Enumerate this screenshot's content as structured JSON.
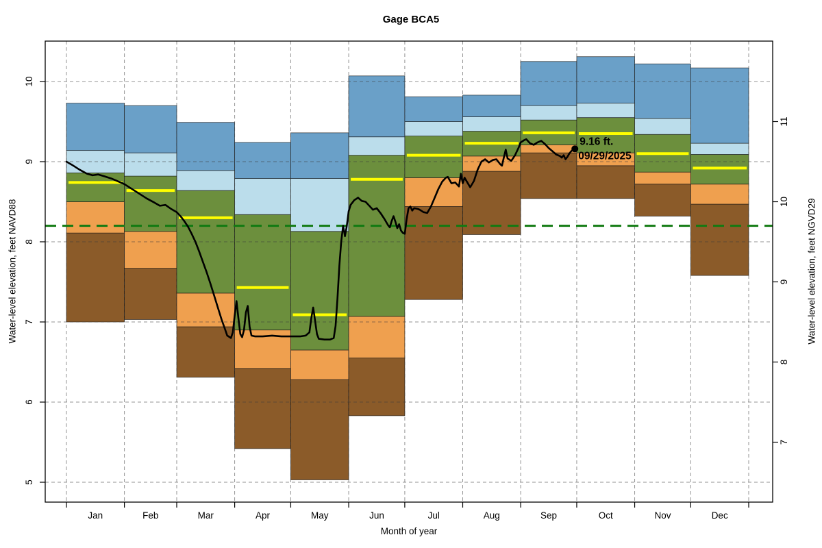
{
  "title": "Gage BCA5",
  "axes": {
    "x_label": "Month of year",
    "y_left_label": "Water-level elevation, feet NAVD88",
    "y_right_label": "Water-level elevation, feet NGVD29",
    "y_left_ticks": [
      5,
      6,
      7,
      8,
      9,
      10
    ],
    "y_right_ticks": [
      7,
      8,
      9,
      10,
      11
    ],
    "ngvd29_minus_navd88_offset": 1.5,
    "y_range_navd88": [
      4.75,
      10.5
    ]
  },
  "chart_data": {
    "type": "area",
    "title": "Gage BCA5",
    "xlabel": "Month of year",
    "ylabel_left": "Water-level elevation, feet NAVD88",
    "ylabel_right": "Water-level elevation, feet NGVD29",
    "months": [
      "Jan",
      "Feb",
      "Mar",
      "Apr",
      "May",
      "Jun",
      "Jul",
      "Aug",
      "Sep",
      "Oct",
      "Nov",
      "Dec"
    ],
    "month_days": [
      31,
      28,
      31,
      30,
      31,
      30,
      31,
      31,
      30,
      31,
      30,
      31
    ],
    "band_order": [
      "min_to_p10",
      "p10_to_p25",
      "p25_to_p75",
      "p75_to_p90",
      "p90_to_max"
    ],
    "band_colors": {
      "min_to_p10": "#8B5B29",
      "p10_to_p25": "#EFA04F",
      "p25_to_p75": "#6C8F3D",
      "p75_to_p90": "#BBDDEB",
      "p90_to_max": "#6AA0C8"
    },
    "median_color": "#FFFF00",
    "grid_color": "#3C3C3C",
    "bands": [
      {
        "month": "Jan",
        "min": 7.0,
        "p10": 8.11,
        "p25": 8.5,
        "p50": 8.74,
        "p75": 8.86,
        "p90": 9.14,
        "max": 9.73
      },
      {
        "month": "Feb",
        "min": 7.03,
        "p10": 7.67,
        "p25": 8.13,
        "p50": 8.64,
        "p75": 8.82,
        "p90": 9.11,
        "max": 9.7
      },
      {
        "month": "Mar",
        "min": 6.31,
        "p10": 6.94,
        "p25": 7.36,
        "p50": 8.3,
        "p75": 8.64,
        "p90": 8.89,
        "max": 9.49
      },
      {
        "month": "Apr",
        "min": 5.42,
        "p10": 6.42,
        "p25": 6.9,
        "p50": 7.43,
        "p75": 8.34,
        "p90": 8.79,
        "max": 9.24
      },
      {
        "month": "May",
        "min": 5.03,
        "p10": 6.28,
        "p25": 6.65,
        "p50": 7.09,
        "p75": 8.13,
        "p90": 8.79,
        "max": 9.36
      },
      {
        "month": "Jun",
        "min": 5.83,
        "p10": 6.55,
        "p25": 7.07,
        "p50": 8.78,
        "p75": 9.08,
        "p90": 9.31,
        "max": 10.07
      },
      {
        "month": "Jul",
        "min": 7.28,
        "p10": 8.44,
        "p25": 8.8,
        "p50": 9.08,
        "p75": 9.32,
        "p90": 9.5,
        "max": 9.81
      },
      {
        "month": "Aug",
        "min": 8.09,
        "p10": 8.88,
        "p25": 9.07,
        "p50": 9.23,
        "p75": 9.38,
        "p90": 9.56,
        "max": 9.83
      },
      {
        "month": "Sep",
        "min": 8.54,
        "p10": 9.11,
        "p25": 9.21,
        "p50": 9.36,
        "p75": 9.52,
        "p90": 9.7,
        "max": 10.25
      },
      {
        "month": "Oct",
        "min": 8.54,
        "p10": 8.95,
        "p25": 9.11,
        "p50": 9.35,
        "p75": 9.55,
        "p90": 9.73,
        "max": 10.31
      },
      {
        "month": "Nov",
        "min": 8.32,
        "p10": 8.72,
        "p25": 8.87,
        "p50": 9.1,
        "p75": 9.34,
        "p90": 9.54,
        "max": 10.22
      },
      {
        "month": "Dec",
        "min": 7.58,
        "p10": 8.47,
        "p25": 8.72,
        "p50": 8.92,
        "p75": 9.09,
        "p90": 9.23,
        "max": 10.17
      }
    ],
    "reference_line": {
      "value_navd88": 8.2,
      "color": "#117A11",
      "style": "dashed"
    },
    "observed_line": {
      "color": "#000000",
      "points": [
        [
          0,
          9.0
        ],
        [
          3,
          8.96
        ],
        [
          7,
          8.9
        ],
        [
          11,
          8.85
        ],
        [
          14,
          8.83
        ],
        [
          17,
          8.84
        ],
        [
          20,
          8.82
        ],
        [
          24,
          8.79
        ],
        [
          27,
          8.76
        ],
        [
          31,
          8.72
        ],
        [
          35,
          8.66
        ],
        [
          39,
          8.6
        ],
        [
          43,
          8.54
        ],
        [
          47,
          8.49
        ],
        [
          50,
          8.45
        ],
        [
          53,
          8.46
        ],
        [
          56,
          8.41
        ],
        [
          59,
          8.37
        ],
        [
          61,
          8.32
        ],
        [
          63,
          8.26
        ],
        [
          65,
          8.19
        ],
        [
          67,
          8.1
        ],
        [
          69,
          8.0
        ],
        [
          71,
          7.88
        ],
        [
          73,
          7.75
        ],
        [
          75,
          7.62
        ],
        [
          77,
          7.48
        ],
        [
          79,
          7.33
        ],
        [
          81,
          7.18
        ],
        [
          83,
          7.03
        ],
        [
          85,
          6.9
        ],
        [
          86,
          6.83
        ],
        [
          88,
          6.8
        ],
        [
          89,
          6.87
        ],
        [
          90,
          7.08
        ],
        [
          91,
          7.26
        ],
        [
          92,
          7.05
        ],
        [
          93,
          6.85
        ],
        [
          94,
          6.81
        ],
        [
          95,
          6.9
        ],
        [
          96,
          7.12
        ],
        [
          97,
          7.2
        ],
        [
          98,
          6.94
        ],
        [
          99,
          6.83
        ],
        [
          101,
          6.82
        ],
        [
          105,
          6.82
        ],
        [
          110,
          6.83
        ],
        [
          115,
          6.82
        ],
        [
          120,
          6.82
        ],
        [
          125,
          6.82
        ],
        [
          128,
          6.83
        ],
        [
          130,
          6.87
        ],
        [
          131,
          7.05
        ],
        [
          132,
          7.18
        ],
        [
          133,
          7.02
        ],
        [
          134,
          6.85
        ],
        [
          135,
          6.79
        ],
        [
          138,
          6.78
        ],
        [
          141,
          6.78
        ],
        [
          143,
          6.8
        ],
        [
          144,
          6.95
        ],
        [
          145,
          7.3
        ],
        [
          146,
          7.7
        ],
        [
          147,
          8.0
        ],
        [
          148,
          8.2
        ],
        [
          149,
          8.07
        ],
        [
          150,
          8.2
        ],
        [
          151,
          8.38
        ],
        [
          152,
          8.46
        ],
        [
          154,
          8.52
        ],
        [
          156,
          8.55
        ],
        [
          158,
          8.51
        ],
        [
          160,
          8.5
        ],
        [
          162,
          8.45
        ],
        [
          164,
          8.4
        ],
        [
          166,
          8.42
        ],
        [
          168,
          8.36
        ],
        [
          170,
          8.29
        ],
        [
          172,
          8.21
        ],
        [
          173,
          8.18
        ],
        [
          174,
          8.26
        ],
        [
          175,
          8.32
        ],
        [
          176,
          8.25
        ],
        [
          177,
          8.17
        ],
        [
          178,
          8.22
        ],
        [
          179,
          8.14
        ],
        [
          180,
          8.11
        ],
        [
          181,
          8.1
        ],
        [
          182,
          8.28
        ],
        [
          183,
          8.42
        ],
        [
          184,
          8.44
        ],
        [
          185,
          8.39
        ],
        [
          186,
          8.42
        ],
        [
          188,
          8.41
        ],
        [
          189,
          8.4
        ],
        [
          191,
          8.37
        ],
        [
          193,
          8.36
        ],
        [
          195,
          8.44
        ],
        [
          197,
          8.55
        ],
        [
          199,
          8.66
        ],
        [
          201,
          8.75
        ],
        [
          203,
          8.8
        ],
        [
          204,
          8.81
        ],
        [
          206,
          8.73
        ],
        [
          208,
          8.74
        ],
        [
          210,
          8.69
        ],
        [
          211,
          8.85
        ],
        [
          212,
          8.73
        ],
        [
          213,
          8.8
        ],
        [
          215,
          8.72
        ],
        [
          216,
          8.68
        ],
        [
          218,
          8.76
        ],
        [
          220,
          8.9
        ],
        [
          222,
          9.0
        ],
        [
          224,
          9.03
        ],
        [
          226,
          8.99
        ],
        [
          228,
          9.02
        ],
        [
          230,
          9.03
        ],
        [
          232,
          8.97
        ],
        [
          233,
          8.95
        ],
        [
          234,
          9.05
        ],
        [
          235,
          9.15
        ],
        [
          236,
          9.04
        ],
        [
          238,
          9.01
        ],
        [
          240,
          9.08
        ],
        [
          242,
          9.18
        ],
        [
          243,
          9.24
        ],
        [
          245,
          9.27
        ],
        [
          246,
          9.28
        ],
        [
          248,
          9.23
        ],
        [
          250,
          9.21
        ],
        [
          252,
          9.24
        ],
        [
          254,
          9.26
        ],
        [
          256,
          9.22
        ],
        [
          258,
          9.17
        ],
        [
          260,
          9.13
        ],
        [
          262,
          9.09
        ],
        [
          264,
          9.07
        ],
        [
          265,
          9.05
        ],
        [
          266,
          9.08
        ],
        [
          267,
          9.03
        ],
        [
          268,
          9.06
        ],
        [
          269,
          9.1
        ],
        [
          270,
          9.13
        ],
        [
          271,
          9.15
        ],
        [
          272,
          9.16
        ]
      ]
    },
    "annotation": {
      "value_label": "9.16 ft.",
      "date_label": "09/29/2025",
      "day_of_year": 272,
      "value_navd88": 9.16
    }
  }
}
